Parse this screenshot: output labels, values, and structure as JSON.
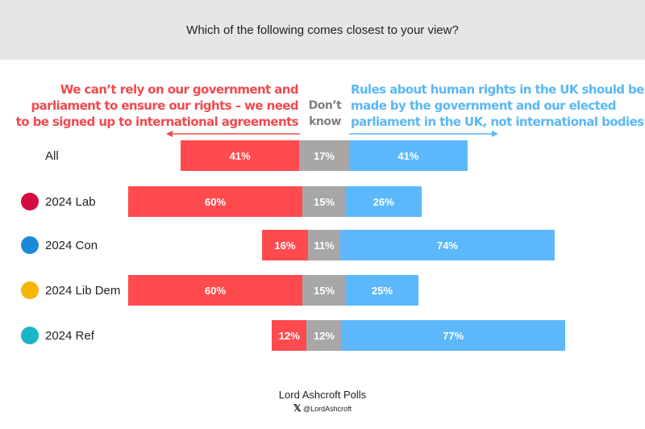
{
  "chart_data": {
    "type": "bar",
    "stacked": "diverging",
    "title": "Which of the following comes closest to your view?",
    "series": [
      {
        "name": "We can’t rely on our government and parliament to ensure our rights – we need to be signed up to international agreements",
        "color": "#ff4b4e",
        "values": [
          41,
          60,
          16,
          60,
          12
        ]
      },
      {
        "name": "Don’t know",
        "color": "#a9a6a6",
        "values": [
          17,
          15,
          11,
          15,
          12
        ]
      },
      {
        "name": "Rules about human rights in the UK should be made by the government and our elected parliament in the UK, not international bodies",
        "color": "#5cb8fb",
        "values": [
          41,
          26,
          74,
          25,
          77
        ]
      }
    ],
    "categories": [
      "All",
      "2024 Lab",
      "2024 Con",
      "2024 Lib Dem",
      "2024 Ref"
    ],
    "category_icons": [
      "",
      "labour-rose-icon",
      "conservative-tree-icon",
      "libdem-bird-icon",
      "reform-icon"
    ],
    "icon_colors": [
      "",
      "#d50a3f",
      "#1a8ad6",
      "#f7b500",
      "#1ab5c8"
    ]
  },
  "left_header": [
    "We can’t rely on our government and",
    "parliament to ensure our rights – we need",
    "to be signed up to international agreements"
  ],
  "dk_header": [
    "Don’t",
    "know"
  ],
  "right_header": [
    "Rules about human rights in the UK should be",
    "made by the government and our elected",
    "parliament in the UK, not international bodies"
  ],
  "footer": {
    "brand": "Lord Ashcroft Polls",
    "handle": "@LordAshcroft"
  }
}
